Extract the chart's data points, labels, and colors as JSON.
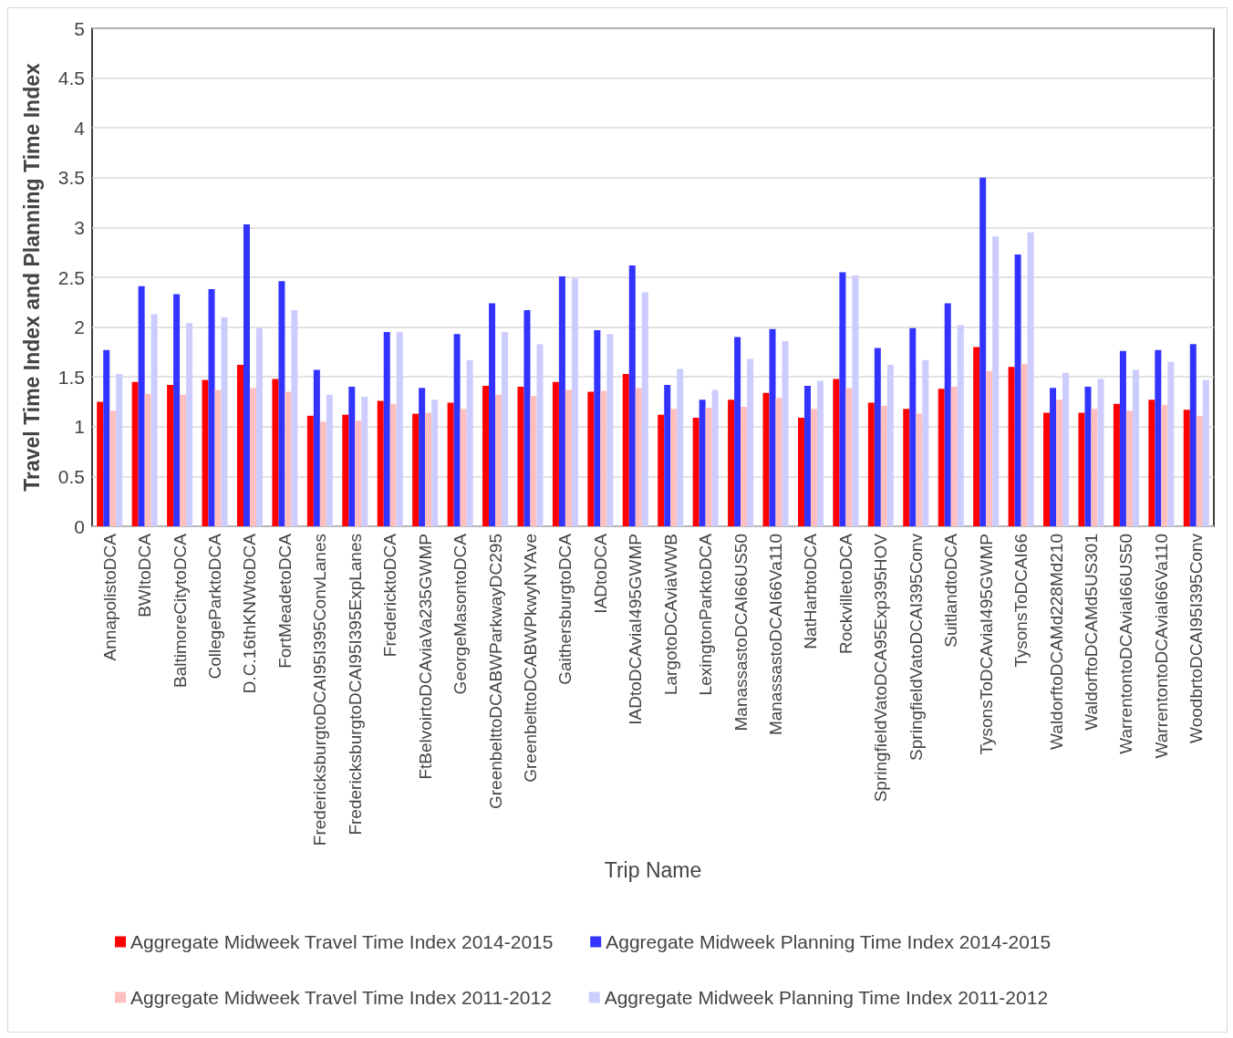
{
  "chart_data": {
    "type": "bar",
    "xlabel": "Trip Name",
    "ylabel": "Travel Time Index and Planning Time Index",
    "categories": [
      "AnnapolistoDCA",
      "BWItoDCA",
      "BaltimoreCitytoDCA",
      "CollegeParktoDCA",
      "D.C.16thKNWtoDCA",
      "FortMeadetoDCA",
      "FredericksburgtoDCAI95I395ConvLanes",
      "FredericksburgtoDCAI95I395ExpLanes",
      "FredericktoDCA",
      "FtBelvoirtoDCAviaVa235GWMP",
      "GeorgeMasontoDCA",
      "GreenbelttoDCABWParkwayDC295",
      "GreenbelttoDCABWPkwyNYAve",
      "GaithersburgtoDCA",
      "IADtoDCA",
      "IADtoDCAviaI495GWMP",
      "LargotoDCAviaWWB",
      "LexingtonParktoDCA",
      "ManassastoDCAI66US50",
      "ManassastoDCAI66Va110",
      "NatHarbtoDCA",
      "RockvilletoDCA",
      "SpringfieldVatoDCA95Exp395HOV",
      "SpringfieldVatoDCAI395Conv",
      "SuitlandtoDCA",
      "TysonsToDCAviaI495GWMP",
      "TysonsToDCAI66",
      "WaldorftoDCAMd228Md210",
      "WaldorftoDCAMd5US301",
      "WarrentontoDCAviaI66US50",
      "WarrentontoDCAviaI66Va110",
      "WoodbrtoDCAI95I395Conv"
    ],
    "series": [
      {
        "name": "Aggregate Midweek Travel Time Index 2014-2015",
        "color": "#ff0000",
        "values": [
          1.25,
          1.45,
          1.42,
          1.47,
          1.62,
          1.48,
          1.11,
          1.12,
          1.26,
          1.13,
          1.24,
          1.41,
          1.4,
          1.45,
          1.35,
          1.53,
          1.12,
          1.09,
          1.27,
          1.34,
          1.09,
          1.48,
          1.24,
          1.18,
          1.38,
          1.8,
          1.6,
          1.14,
          1.14,
          1.23,
          1.27,
          1.17
        ]
      },
      {
        "name": "Aggregate Midweek Planning Time Index 2014-2015",
        "color": "#3333ff",
        "values": [
          1.77,
          2.41,
          2.33,
          2.38,
          3.03,
          2.46,
          1.57,
          1.4,
          1.95,
          1.39,
          1.93,
          2.24,
          2.17,
          2.51,
          1.97,
          2.62,
          1.42,
          1.27,
          1.9,
          1.98,
          1.41,
          2.55,
          1.79,
          1.99,
          2.24,
          3.5,
          2.73,
          1.39,
          1.4,
          1.76,
          1.77,
          1.83
        ]
      },
      {
        "name": "Aggregate Midweek Travel Time Index 2011-2012",
        "color": "#ffbfbf",
        "values": [
          1.16,
          1.33,
          1.32,
          1.37,
          1.39,
          1.35,
          1.05,
          1.06,
          1.23,
          1.14,
          1.18,
          1.32,
          1.31,
          1.37,
          1.36,
          1.39,
          1.18,
          1.19,
          1.2,
          1.29,
          1.18,
          1.39,
          1.21,
          1.13,
          1.4,
          1.56,
          1.63,
          1.27,
          1.18,
          1.16,
          1.22,
          1.11
        ]
      },
      {
        "name": "Aggregate Midweek Planning Time Index 2011-2012",
        "color": "#ccccff",
        "values": [
          1.53,
          2.13,
          2.04,
          2.1,
          1.99,
          2.17,
          1.32,
          1.3,
          1.95,
          1.27,
          1.67,
          1.95,
          1.83,
          2.49,
          1.93,
          2.35,
          1.58,
          1.37,
          1.68,
          1.86,
          1.46,
          2.52,
          1.62,
          1.67,
          2.02,
          2.91,
          2.95,
          1.54,
          1.48,
          1.57,
          1.65,
          1.47
        ]
      }
    ],
    "ylim": [
      0,
      5
    ],
    "yticks": [
      0,
      0.5,
      1,
      1.5,
      2,
      2.5,
      3,
      3.5,
      4,
      4.5,
      5
    ],
    "grid": "y",
    "legend": "bottom"
  }
}
